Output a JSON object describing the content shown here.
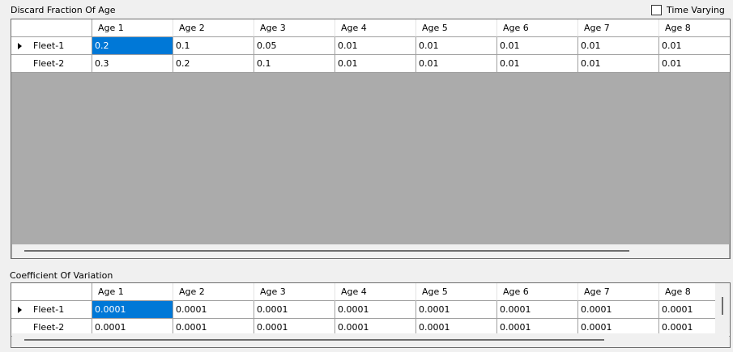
{
  "discard": {
    "title": "Discard Fraction Of Age",
    "time_varying_label": "Time Varying",
    "columns": [
      "Age 1",
      "Age 2",
      "Age 3",
      "Age 4",
      "Age 5",
      "Age 6",
      "Age 7",
      "Age 8"
    ],
    "rows": [
      {
        "label": "Fleet-1",
        "values": [
          "0.2",
          "0.1",
          "0.05",
          "0.01",
          "0.01",
          "0.01",
          "0.01",
          "0.01"
        ]
      },
      {
        "label": "Fleet-2",
        "values": [
          "0.3",
          "0.2",
          "0.1",
          "0.01",
          "0.01",
          "0.01",
          "0.01",
          "0.01"
        ]
      }
    ]
  },
  "cov": {
    "title": "Coefficient Of Variation",
    "columns": [
      "Age 1",
      "Age 2",
      "Age 3",
      "Age 4",
      "Age 5",
      "Age 6",
      "Age 7",
      "Age 8"
    ],
    "rows": [
      {
        "label": "Fleet-1",
        "values": [
          "0.0001",
          "0.0001",
          "0.0001",
          "0.0001",
          "0.0001",
          "0.0001",
          "0.0001",
          "0.0001"
        ]
      },
      {
        "label": "Fleet-2",
        "values": [
          "0.0001",
          "0.0001",
          "0.0001",
          "0.0001",
          "0.0001",
          "0.0001",
          "0.0001",
          "0.0001"
        ]
      }
    ]
  }
}
